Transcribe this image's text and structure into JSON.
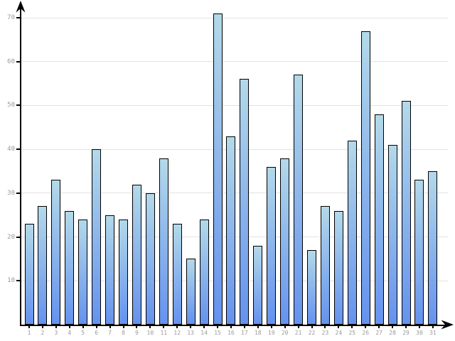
{
  "chart_data": {
    "type": "bar",
    "title": "",
    "xlabel": "",
    "ylabel": "",
    "categories": [
      "1",
      "2",
      "3",
      "4",
      "5",
      "6",
      "7",
      "8",
      "9",
      "10",
      "11",
      "12",
      "13",
      "14",
      "15",
      "16",
      "17",
      "18",
      "19",
      "20",
      "21",
      "22",
      "23",
      "24",
      "25",
      "26",
      "27",
      "28",
      "29",
      "30",
      "31"
    ],
    "values": [
      23,
      27,
      33,
      26,
      24,
      40,
      25,
      24,
      32,
      30,
      38,
      23,
      15,
      24,
      71,
      43,
      56,
      18,
      36,
      38,
      57,
      17,
      27,
      26,
      42,
      67,
      48,
      41,
      51,
      33,
      35
    ],
    "yticks": [
      10,
      20,
      30,
      40,
      50,
      60,
      70
    ],
    "ylim": [
      0,
      73
    ],
    "grid": true,
    "legend": "none",
    "colors": {
      "background": "#ffffff",
      "bar_gradient_top": "#b3d9e9",
      "bar_gradient_bottom": "#6592ee",
      "bar_border": "#000000",
      "gridline": "#e2e2e2",
      "axis": "#000000",
      "tick_label": "#999999"
    }
  }
}
